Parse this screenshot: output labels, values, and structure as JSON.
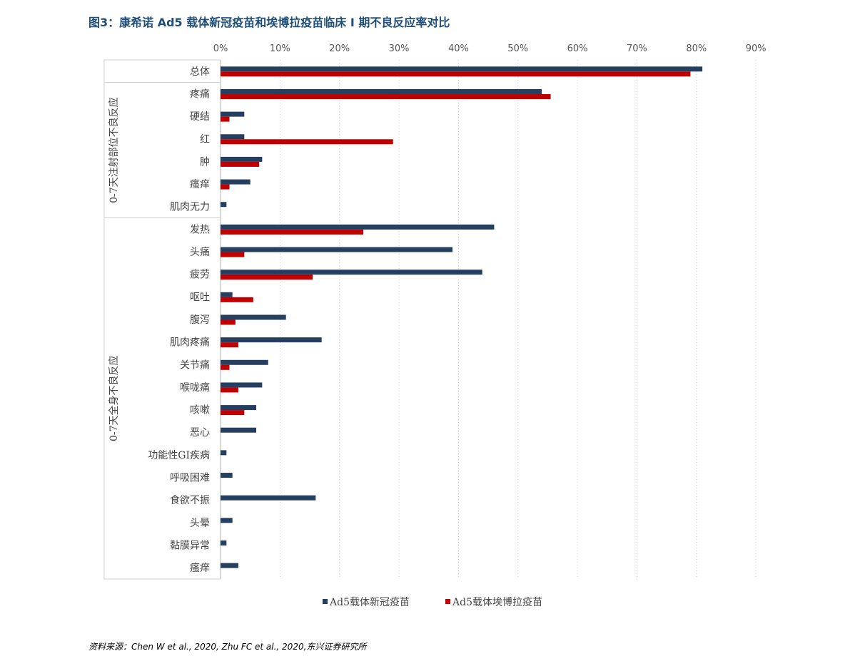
{
  "title": "图3：康希诺 Ad5 载体新冠疫苗和埃博拉疫苗临床 I 期不良反应率对比",
  "source": "资料来源：Chen  W et al., 2020,    Zhu FC et al., 2020,东兴证券研究所",
  "chart_data": {
    "type": "bar",
    "orientation": "horizontal",
    "xlim": [
      0,
      90
    ],
    "x_ticks": [
      "0%",
      "10%",
      "20%",
      "30%",
      "40%",
      "50%",
      "60%",
      "70%",
      "80%",
      "90%"
    ],
    "grid": "vertical dotted",
    "legend_position": "bottom",
    "categories": [
      "总体",
      "疼痛",
      "硬结",
      "红",
      "肿",
      "瘙痒",
      "肌肉无力",
      "发热",
      "头痛",
      "疲劳",
      "呕吐",
      "腹泻",
      "肌肉疼痛",
      "关节痛",
      "喉咙痛",
      "咳嗽",
      "恶心",
      "功能性GI疾病",
      "呼吸困难",
      "食欲不振",
      "头晕",
      "黏膜异常",
      "瘙痒"
    ],
    "groups": [
      {
        "label": "0-7天注射部位不良反应",
        "from": 1,
        "to": 6
      },
      {
        "label": "0-7天全身不良反应",
        "from": 7,
        "to": 22
      }
    ],
    "series": [
      {
        "name": "Ad5载体新冠疫苗",
        "color": "#243f60",
        "values": [
          81,
          54,
          4,
          4,
          7,
          5,
          1,
          46,
          39,
          44,
          2,
          11,
          17,
          8,
          7,
          6,
          6,
          1,
          2,
          16,
          2,
          1,
          3
        ]
      },
      {
        "name": "Ad5载体埃博拉疫苗",
        "color": "#c00000",
        "values": [
          79,
          55.5,
          1.5,
          29,
          6.5,
          1.5,
          0,
          24,
          4,
          15.5,
          5.5,
          2.5,
          3,
          1.5,
          3,
          4,
          0,
          0,
          0,
          0,
          0,
          0,
          0
        ]
      }
    ]
  }
}
